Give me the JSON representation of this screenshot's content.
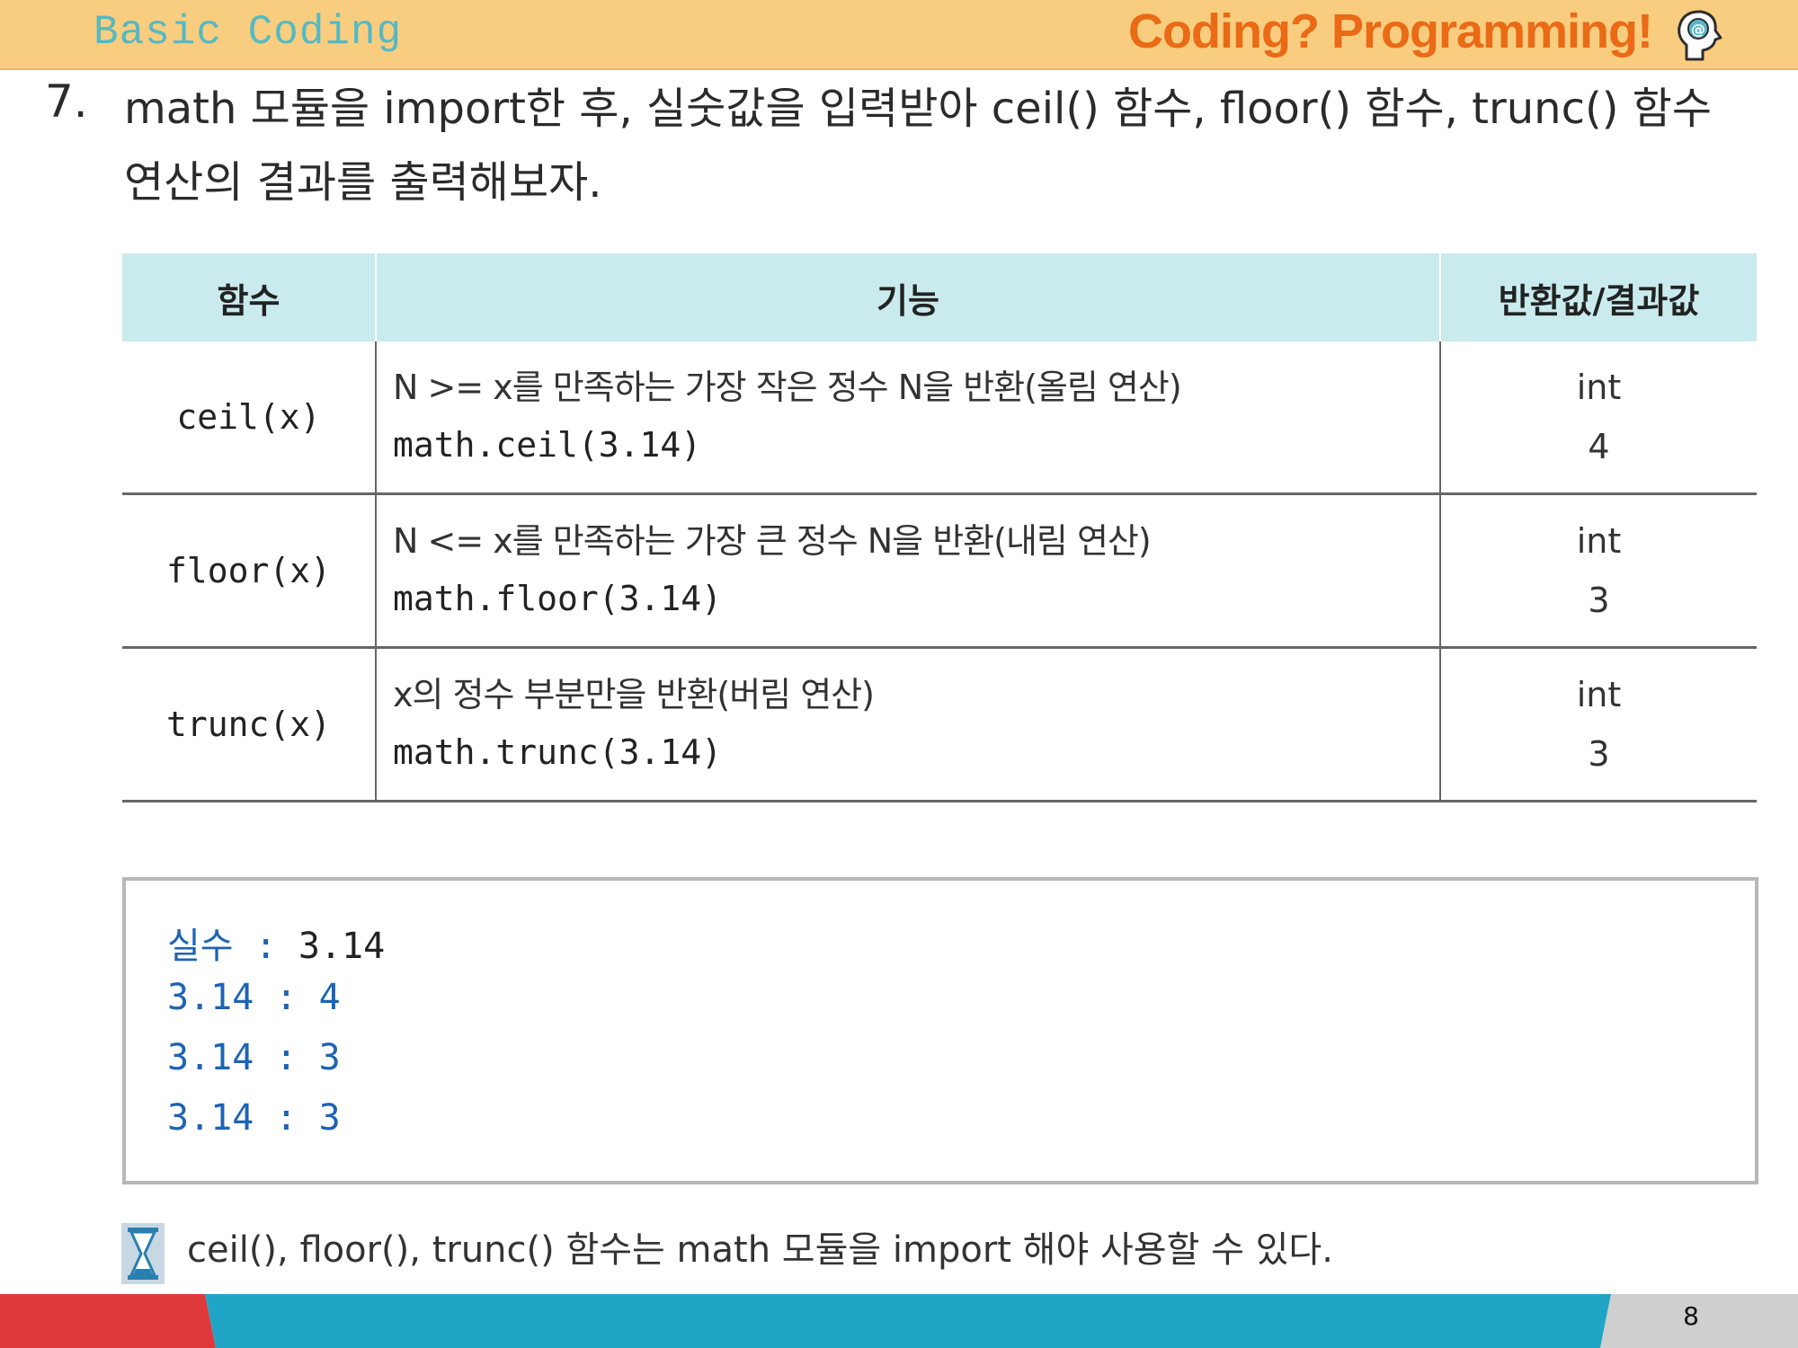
{
  "header": {
    "left_title": "Basic Coding",
    "right_title": "Coding? Programming!"
  },
  "question": {
    "number": "7.",
    "text": "math 모듈을 import한 후, 실숫값을 입력받아 ceil() 함수, floor() 함수, trunc() 함수 연산의 결과를 출력해보자."
  },
  "table": {
    "headers": [
      "함수",
      "기능",
      "반환값/결과값"
    ],
    "rows": [
      {
        "func": "ceil(x)",
        "desc": "N >= x를 만족하는 가장 작은 정수 N을 반환(올림 연산)",
        "code": "math.ceil(3.14)",
        "ret_type": "int",
        "ret_value": "4"
      },
      {
        "func": "floor(x)",
        "desc": "N <= x를 만족하는 가장 큰 정수 N을 반환(내림 연산)",
        "code": "math.floor(3.14)",
        "ret_type": "int",
        "ret_value": "3"
      },
      {
        "func": "trunc(x)",
        "desc": "x의 정수 부분만을 반환(버림 연산)",
        "code": "math.trunc(3.14)",
        "ret_type": "int",
        "ret_value": "3"
      }
    ]
  },
  "output": [
    {
      "label": "실수 : ",
      "value": "3.14"
    },
    {
      "label": "3.14 : 4",
      "value": ""
    },
    {
      "label": "3.14 : 3",
      "value": ""
    },
    {
      "label": "3.14 : 3",
      "value": ""
    }
  ],
  "note": "ceil(), floor(), trunc() 함수는 math 모듈을 import 해야 사용할 수 있다.",
  "page_number": "8",
  "colors": {
    "header_bg": "#f9cd7f",
    "header_left": "#55b9c3",
    "header_right": "#ea6a16",
    "table_header_bg": "#c9ebed",
    "output_label": "#1e63b4",
    "footer_red": "#e0393c",
    "footer_blue": "#21a5c6",
    "footer_gray": "#cfcfcf"
  }
}
